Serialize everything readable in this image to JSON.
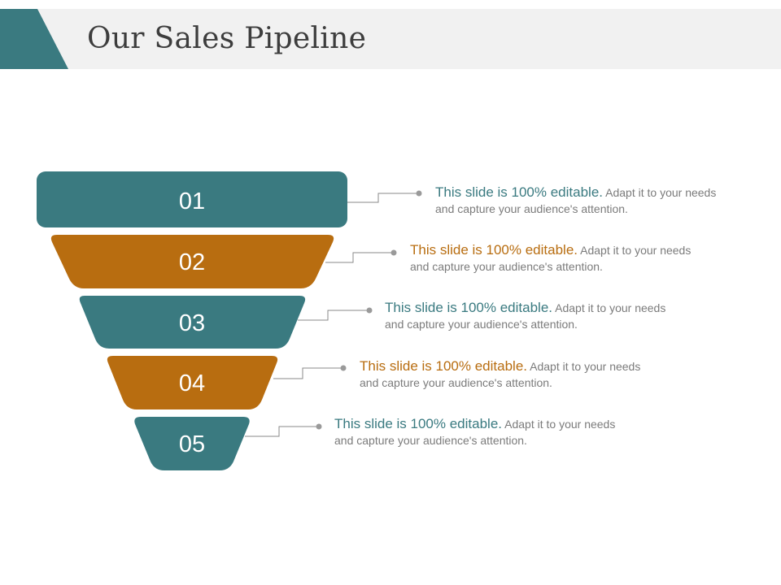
{
  "title": "Our Sales Pipeline",
  "colors": {
    "teal": "#3a7a80",
    "orange": "#b86d10",
    "connector": "#8a8a8a"
  },
  "stages": [
    {
      "number": "01",
      "color": "teal",
      "highlight": "This slide is 100% editable.",
      "text": " Adapt it to your needs and capture your audience's attention."
    },
    {
      "number": "02",
      "color": "orange",
      "highlight": "This slide is 100% editable.",
      "text": " Adapt it to your needs and capture your audience's attention."
    },
    {
      "number": "03",
      "color": "teal",
      "highlight": "This slide is 100% editable.",
      "text": " Adapt it to your needs and capture your audience's attention."
    },
    {
      "number": "04",
      "color": "orange",
      "highlight": "This slide is 100% editable.",
      "text": " Adapt it to your needs and capture your audience's attention."
    },
    {
      "number": "05",
      "color": "teal",
      "highlight": "This slide is 100% editable.",
      "text": " Adapt it to your needs and capture your audience's attention."
    }
  ]
}
